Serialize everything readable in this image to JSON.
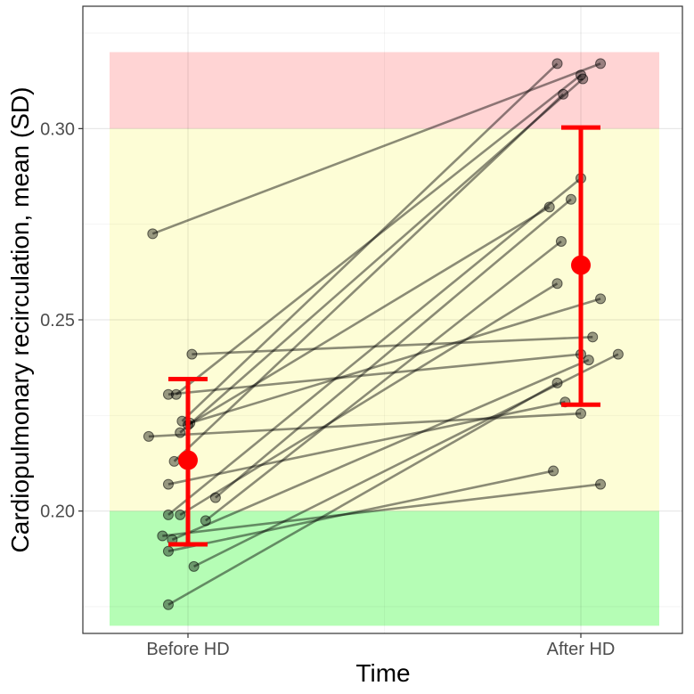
{
  "chart_data": {
    "type": "line",
    "title": "",
    "xlabel": "Time",
    "ylabel": "Cardiopulmonary recirculation, mean (SD)",
    "categories": [
      "Before HD",
      "After HD"
    ],
    "ylim": [
      0.168,
      0.332
    ],
    "yticks": [
      0.2,
      0.25,
      0.3
    ],
    "ytick_labels": [
      "0.20",
      "0.25",
      "0.30"
    ],
    "grid": true,
    "bands": [
      {
        "name": "high",
        "from": 0.3,
        "to": 0.32,
        "color": "#ffd4d4"
      },
      {
        "name": "mid",
        "from": 0.2,
        "to": 0.3,
        "color": "#fdfdd6"
      },
      {
        "name": "low",
        "from": 0.17,
        "to": 0.2,
        "color": "#b5fdb5"
      }
    ],
    "pairs": [
      {
        "before": 0.2725,
        "after": 0.317,
        "jb": -0.09,
        "ja": 0.05
      },
      {
        "before": 0.241,
        "after": 0.2455,
        "jb": 0.01,
        "ja": 0.03
      },
      {
        "before": 0.2305,
        "after": 0.314,
        "jb": -0.03,
        "ja": 0.0
      },
      {
        "before": 0.2305,
        "after": 0.241,
        "jb": -0.05,
        "ja": 0.0
      },
      {
        "before": 0.2235,
        "after": 0.317,
        "jb": -0.015,
        "ja": -0.06
      },
      {
        "before": 0.2225,
        "after": 0.2795,
        "jb": 0.0,
        "ja": -0.08
      },
      {
        "before": 0.223,
        "after": 0.2555,
        "jb": 0.005,
        "ja": 0.05
      },
      {
        "before": 0.2205,
        "after": 0.313,
        "jb": -0.02,
        "ja": 0.005
      },
      {
        "before": 0.2195,
        "after": 0.2255,
        "jb": -0.1,
        "ja": 0.0
      },
      {
        "before": 0.213,
        "after": 0.309,
        "jb": -0.035,
        "ja": -0.045
      },
      {
        "before": 0.207,
        "after": 0.2285,
        "jb": -0.05,
        "ja": -0.04
      },
      {
        "before": 0.2035,
        "after": 0.2815,
        "jb": 0.07,
        "ja": -0.025
      },
      {
        "before": 0.199,
        "after": 0.287,
        "jb": -0.05,
        "ja": 0.0
      },
      {
        "before": 0.199,
        "after": 0.2595,
        "jb": -0.02,
        "ja": -0.06
      },
      {
        "before": 0.1975,
        "after": 0.2705,
        "jb": 0.045,
        "ja": -0.05
      },
      {
        "before": 0.1925,
        "after": 0.2395,
        "jb": -0.04,
        "ja": 0.02
      },
      {
        "before": 0.1935,
        "after": 0.207,
        "jb": -0.065,
        "ja": 0.05
      },
      {
        "before": 0.1895,
        "after": 0.2105,
        "jb": -0.05,
        "ja": -0.07
      },
      {
        "before": 0.1855,
        "after": 0.241,
        "jb": 0.015,
        "ja": 0.095
      },
      {
        "before": 0.1755,
        "after": 0.2335,
        "jb": -0.05,
        "ja": -0.06
      }
    ],
    "summary": [
      {
        "category": "Before HD",
        "mean": 0.2133,
        "sd_low": 0.1913,
        "sd_high": 0.2345
      },
      {
        "category": "After HD",
        "mean": 0.2643,
        "sd_low": 0.2278,
        "sd_high": 0.3003
      }
    ],
    "summary_color": "#ff0000",
    "point_color": "#000000",
    "band_colors": {
      "high": "#ffd4d4",
      "mid": "#fdfdd6",
      "low": "#b5fdb5"
    }
  }
}
